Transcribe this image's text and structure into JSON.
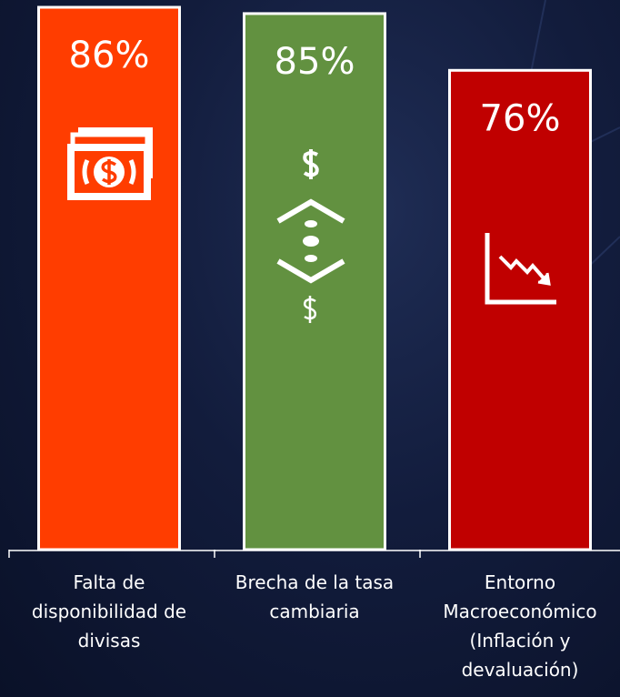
{
  "chart_data": {
    "type": "bar",
    "categories": [
      "Falta de disponibilidad de divisas",
      "Brecha de la tasa cambiaria",
      "Entorno Macroeconómico (Inflación y devaluación)"
    ],
    "values": [
      86,
      85,
      76
    ],
    "value_labels": [
      "86%",
      "85%",
      "76%"
    ],
    "colors": [
      "#ff3d00",
      "#629140",
      "#c00000"
    ],
    "ylim": [
      0,
      86
    ]
  }
}
